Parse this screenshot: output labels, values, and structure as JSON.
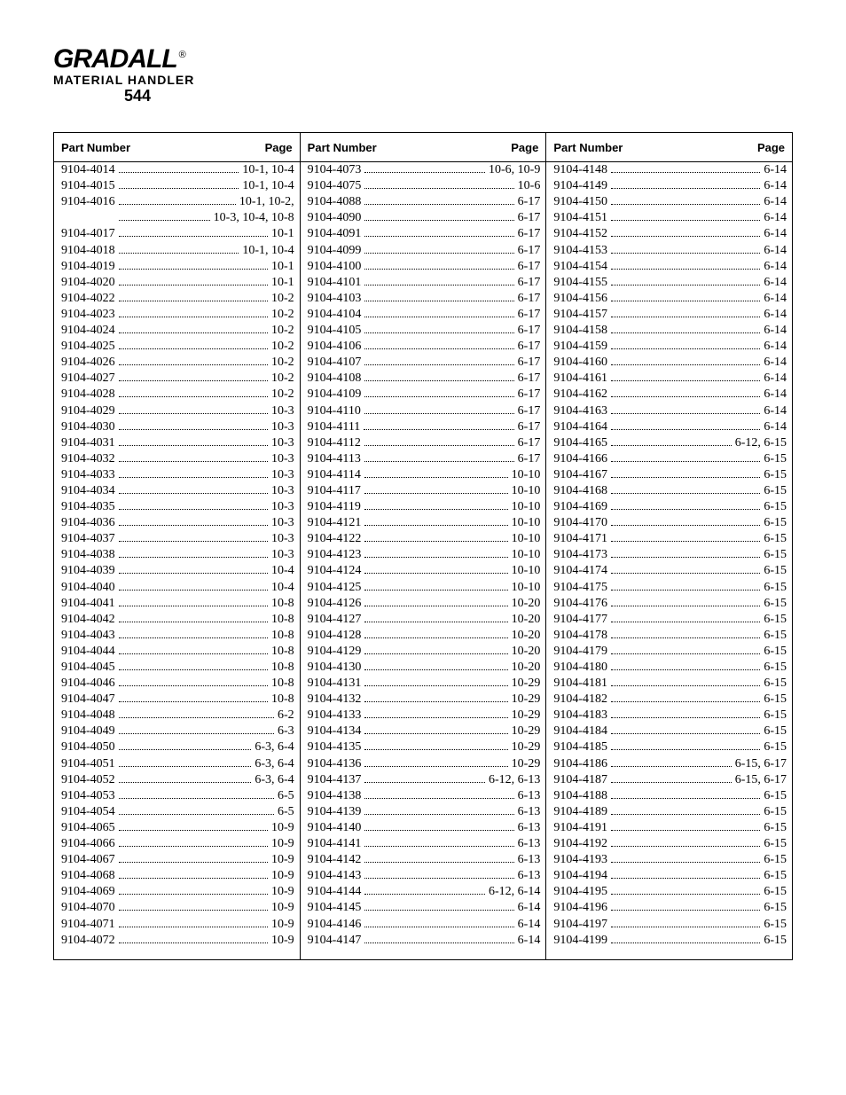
{
  "header": {
    "brand": "GRADALL",
    "registered": "®",
    "tagline": "MATERIAL HANDLER",
    "model": "544"
  },
  "column_headers": {
    "part": "Part Number",
    "page": "Page"
  },
  "columns": [
    [
      {
        "pn": "9104-4014",
        "pg": "10-1, 10-4"
      },
      {
        "pn": "9104-4015",
        "pg": "10-1, 10-4"
      },
      {
        "pn": "9104-4016",
        "pg": "10-1, 10-2,"
      },
      {
        "pn": "",
        "pg": "10-3, 10-4, 10-8",
        "cont": true
      },
      {
        "pn": "9104-4017",
        "pg": "10-1"
      },
      {
        "pn": "9104-4018",
        "pg": "10-1, 10-4"
      },
      {
        "pn": "9104-4019",
        "pg": "10-1"
      },
      {
        "pn": "9104-4020",
        "pg": "10-1"
      },
      {
        "pn": "9104-4022",
        "pg": "10-2"
      },
      {
        "pn": "9104-4023",
        "pg": "10-2"
      },
      {
        "pn": "9104-4024",
        "pg": "10-2"
      },
      {
        "pn": "9104-4025",
        "pg": "10-2"
      },
      {
        "pn": "9104-4026",
        "pg": "10-2"
      },
      {
        "pn": "9104-4027",
        "pg": "10-2"
      },
      {
        "pn": "9104-4028",
        "pg": "10-2"
      },
      {
        "pn": "9104-4029",
        "pg": "10-3"
      },
      {
        "pn": "9104-4030",
        "pg": "10-3"
      },
      {
        "pn": "9104-4031",
        "pg": "10-3"
      },
      {
        "pn": "9104-4032",
        "pg": "10-3"
      },
      {
        "pn": "9104-4033",
        "pg": "10-3"
      },
      {
        "pn": "9104-4034",
        "pg": "10-3"
      },
      {
        "pn": "9104-4035",
        "pg": "10-3"
      },
      {
        "pn": "9104-4036",
        "pg": "10-3"
      },
      {
        "pn": "9104-4037",
        "pg": "10-3"
      },
      {
        "pn": "9104-4038",
        "pg": "10-3"
      },
      {
        "pn": "9104-4039",
        "pg": "10-4"
      },
      {
        "pn": "9104-4040",
        "pg": "10-4"
      },
      {
        "pn": "9104-4041",
        "pg": "10-8"
      },
      {
        "pn": "9104-4042",
        "pg": "10-8"
      },
      {
        "pn": "9104-4043",
        "pg": "10-8"
      },
      {
        "pn": "9104-4044",
        "pg": "10-8"
      },
      {
        "pn": "9104-4045",
        "pg": "10-8"
      },
      {
        "pn": "9104-4046",
        "pg": "10-8"
      },
      {
        "pn": "9104-4047",
        "pg": "10-8"
      },
      {
        "pn": "9104-4048",
        "pg": "6-2"
      },
      {
        "pn": "9104-4049",
        "pg": "6-3"
      },
      {
        "pn": "9104-4050",
        "pg": "6-3, 6-4"
      },
      {
        "pn": "9104-4051",
        "pg": "6-3, 6-4"
      },
      {
        "pn": "9104-4052",
        "pg": "6-3, 6-4"
      },
      {
        "pn": "9104-4053",
        "pg": "6-5"
      },
      {
        "pn": "9104-4054",
        "pg": "6-5"
      },
      {
        "pn": "9104-4065",
        "pg": "10-9"
      },
      {
        "pn": "9104-4066",
        "pg": "10-9"
      },
      {
        "pn": "9104-4067",
        "pg": "10-9"
      },
      {
        "pn": "9104-4068",
        "pg": "10-9"
      },
      {
        "pn": "9104-4069",
        "pg": "10-9"
      },
      {
        "pn": "9104-4070",
        "pg": "10-9"
      },
      {
        "pn": "9104-4071",
        "pg": "10-9"
      },
      {
        "pn": "9104-4072",
        "pg": "10-9"
      }
    ],
    [
      {
        "pn": "9104-4073",
        "pg": "10-6, 10-9"
      },
      {
        "pn": "9104-4075",
        "pg": "10-6"
      },
      {
        "pn": "9104-4088",
        "pg": "6-17"
      },
      {
        "pn": "9104-4090",
        "pg": "6-17"
      },
      {
        "pn": "9104-4091",
        "pg": "6-17"
      },
      {
        "pn": "9104-4099",
        "pg": "6-17"
      },
      {
        "pn": "9104-4100",
        "pg": "6-17"
      },
      {
        "pn": "9104-4101",
        "pg": "6-17"
      },
      {
        "pn": "9104-4103",
        "pg": "6-17"
      },
      {
        "pn": "9104-4104",
        "pg": "6-17"
      },
      {
        "pn": "9104-4105",
        "pg": "6-17"
      },
      {
        "pn": "9104-4106",
        "pg": "6-17"
      },
      {
        "pn": "9104-4107",
        "pg": "6-17"
      },
      {
        "pn": "9104-4108",
        "pg": "6-17"
      },
      {
        "pn": "9104-4109",
        "pg": "6-17"
      },
      {
        "pn": "9104-4110",
        "pg": "6-17"
      },
      {
        "pn": "9104-4111",
        "pg": "6-17"
      },
      {
        "pn": "9104-4112",
        "pg": "6-17"
      },
      {
        "pn": "9104-4113",
        "pg": "6-17"
      },
      {
        "pn": "9104-4114",
        "pg": "10-10"
      },
      {
        "pn": "9104-4117",
        "pg": "10-10"
      },
      {
        "pn": "9104-4119",
        "pg": "10-10"
      },
      {
        "pn": "9104-4121",
        "pg": "10-10"
      },
      {
        "pn": "9104-4122",
        "pg": "10-10"
      },
      {
        "pn": "9104-4123",
        "pg": "10-10"
      },
      {
        "pn": "9104-4124",
        "pg": "10-10"
      },
      {
        "pn": "9104-4125",
        "pg": "10-10"
      },
      {
        "pn": "9104-4126",
        "pg": "10-20"
      },
      {
        "pn": "9104-4127",
        "pg": "10-20"
      },
      {
        "pn": "9104-4128",
        "pg": "10-20"
      },
      {
        "pn": "9104-4129",
        "pg": "10-20"
      },
      {
        "pn": "9104-4130",
        "pg": "10-20"
      },
      {
        "pn": "9104-4131",
        "pg": "10-29"
      },
      {
        "pn": "9104-4132",
        "pg": "10-29"
      },
      {
        "pn": "9104-4133",
        "pg": "10-29"
      },
      {
        "pn": "9104-4134",
        "pg": "10-29"
      },
      {
        "pn": "9104-4135",
        "pg": "10-29"
      },
      {
        "pn": "9104-4136",
        "pg": "10-29"
      },
      {
        "pn": "9104-4137",
        "pg": "6-12, 6-13"
      },
      {
        "pn": "9104-4138",
        "pg": "6-13"
      },
      {
        "pn": "9104-4139",
        "pg": "6-13"
      },
      {
        "pn": "9104-4140",
        "pg": "6-13"
      },
      {
        "pn": "9104-4141",
        "pg": "6-13"
      },
      {
        "pn": "9104-4142",
        "pg": "6-13"
      },
      {
        "pn": "9104-4143",
        "pg": "6-13"
      },
      {
        "pn": "9104-4144",
        "pg": "6-12, 6-14"
      },
      {
        "pn": "9104-4145",
        "pg": "6-14"
      },
      {
        "pn": "9104-4146",
        "pg": "6-14"
      },
      {
        "pn": "9104-4147",
        "pg": "6-14"
      }
    ],
    [
      {
        "pn": "9104-4148",
        "pg": "6-14"
      },
      {
        "pn": "9104-4149",
        "pg": "6-14"
      },
      {
        "pn": "9104-4150",
        "pg": "6-14"
      },
      {
        "pn": "9104-4151",
        "pg": "6-14"
      },
      {
        "pn": "9104-4152",
        "pg": "6-14"
      },
      {
        "pn": "9104-4153",
        "pg": "6-14"
      },
      {
        "pn": "9104-4154",
        "pg": "6-14"
      },
      {
        "pn": "9104-4155",
        "pg": "6-14"
      },
      {
        "pn": "9104-4156",
        "pg": "6-14"
      },
      {
        "pn": "9104-4157",
        "pg": "6-14"
      },
      {
        "pn": "9104-4158",
        "pg": "6-14"
      },
      {
        "pn": "9104-4159",
        "pg": "6-14"
      },
      {
        "pn": "9104-4160",
        "pg": "6-14"
      },
      {
        "pn": "9104-4161",
        "pg": "6-14"
      },
      {
        "pn": "9104-4162",
        "pg": "6-14"
      },
      {
        "pn": "9104-4163",
        "pg": "6-14"
      },
      {
        "pn": "9104-4164",
        "pg": "6-14"
      },
      {
        "pn": "9104-4165",
        "pg": "6-12, 6-15"
      },
      {
        "pn": "9104-4166",
        "pg": "6-15"
      },
      {
        "pn": "9104-4167",
        "pg": "6-15"
      },
      {
        "pn": "9104-4168",
        "pg": "6-15"
      },
      {
        "pn": "9104-4169",
        "pg": "6-15"
      },
      {
        "pn": "9104-4170",
        "pg": "6-15"
      },
      {
        "pn": "9104-4171",
        "pg": "6-15"
      },
      {
        "pn": "9104-4173",
        "pg": "6-15"
      },
      {
        "pn": "9104-4174",
        "pg": "6-15"
      },
      {
        "pn": "9104-4175",
        "pg": "6-15"
      },
      {
        "pn": "9104-4176",
        "pg": "6-15"
      },
      {
        "pn": "9104-4177",
        "pg": "6-15"
      },
      {
        "pn": "9104-4178",
        "pg": "6-15"
      },
      {
        "pn": "9104-4179",
        "pg": "6-15"
      },
      {
        "pn": "9104-4180",
        "pg": "6-15"
      },
      {
        "pn": "9104-4181",
        "pg": "6-15"
      },
      {
        "pn": "9104-4182",
        "pg": "6-15"
      },
      {
        "pn": "9104-4183",
        "pg": "6-15"
      },
      {
        "pn": "9104-4184",
        "pg": "6-15"
      },
      {
        "pn": "9104-4185",
        "pg": "6-15"
      },
      {
        "pn": "9104-4186",
        "pg": "6-15, 6-17"
      },
      {
        "pn": "9104-4187",
        "pg": "6-15, 6-17"
      },
      {
        "pn": "9104-4188",
        "pg": "6-15"
      },
      {
        "pn": "9104-4189",
        "pg": "6-15"
      },
      {
        "pn": "9104-4191",
        "pg": "6-15"
      },
      {
        "pn": "9104-4192",
        "pg": "6-15"
      },
      {
        "pn": "9104-4193",
        "pg": "6-15"
      },
      {
        "pn": "9104-4194",
        "pg": "6-15"
      },
      {
        "pn": "9104-4195",
        "pg": "6-15"
      },
      {
        "pn": "9104-4196",
        "pg": "6-15"
      },
      {
        "pn": "9104-4197",
        "pg": "6-15"
      },
      {
        "pn": "9104-4199",
        "pg": "6-15"
      }
    ]
  ]
}
